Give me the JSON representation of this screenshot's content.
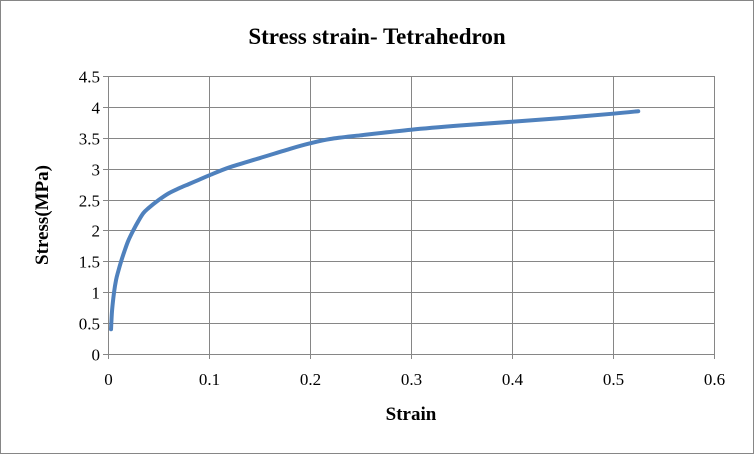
{
  "chart_data": {
    "type": "line",
    "title": "Stress strain- Tetrahedron",
    "xlabel": "Strain",
    "ylabel": "Stress(MPa)",
    "xlim": [
      0,
      0.6
    ],
    "ylim": [
      0,
      4.5
    ],
    "x_ticks": [
      "0",
      "0.1",
      "0.2",
      "0.3",
      "0.4",
      "0.5",
      "0.6"
    ],
    "y_ticks": [
      "0",
      "0.5",
      "1",
      "1.5",
      "2",
      "2.5",
      "3",
      "3.5",
      "4",
      "4.5"
    ],
    "grid": true,
    "legend": false,
    "series": [
      {
        "color": "#4F81BD",
        "x": [
          0.003,
          0.004,
          0.006,
          0.008,
          0.01,
          0.013,
          0.016,
          0.02,
          0.025,
          0.03,
          0.035,
          0.04,
          0.05,
          0.06,
          0.07,
          0.08,
          0.09,
          0.1,
          0.12,
          0.15,
          0.18,
          0.2,
          0.22,
          0.25,
          0.3,
          0.35,
          0.4,
          0.45,
          0.5,
          0.525
        ],
        "y": [
          0.4,
          0.7,
          1.0,
          1.2,
          1.33,
          1.5,
          1.65,
          1.83,
          2.0,
          2.15,
          2.28,
          2.36,
          2.49,
          2.6,
          2.68,
          2.75,
          2.82,
          2.89,
          3.02,
          3.17,
          3.32,
          3.41,
          3.48,
          3.54,
          3.63,
          3.7,
          3.76,
          3.82,
          3.89,
          3.93
        ]
      }
    ]
  }
}
